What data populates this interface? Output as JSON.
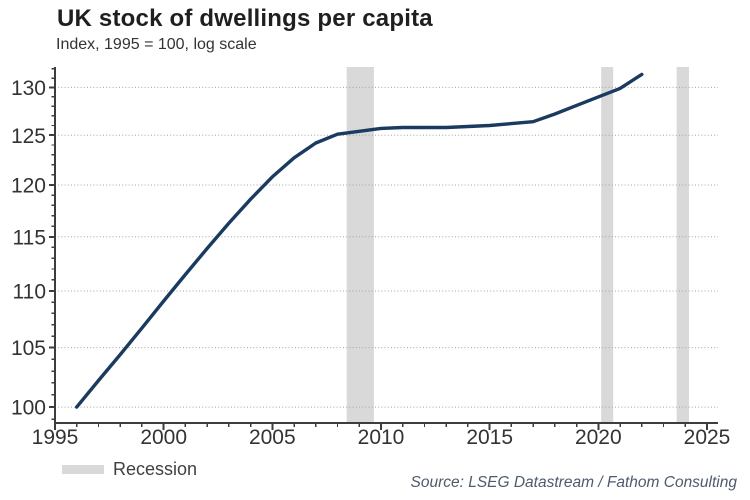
{
  "header": {
    "title": "UK stock of dwellings per capita",
    "subtitle": "Index, 1995 = 100, log scale"
  },
  "legend": {
    "label": "Recession"
  },
  "footer": {
    "source": "Source: LSEG Datastream / Fathom Consulting"
  },
  "colors": {
    "line": "#1a3a60",
    "recession_band": "#d9d9d9",
    "gridline": "#a3a3a3",
    "axis": "#3d3d3d",
    "tick_label": "#333333",
    "title": "#1f1f1f",
    "subtitle": "#333333",
    "legend_text": "#404040",
    "source_text": "#4d5b6b"
  },
  "chart_data": {
    "type": "line",
    "title": "UK stock of dwellings per capita",
    "subtitle": "Index, 1995 = 100, log scale",
    "scale": "log",
    "grid": "horizontal-dotted",
    "legend_position": "bottom-left",
    "x": [
      1996,
      1997,
      1998,
      1999,
      2000,
      2001,
      2002,
      2003,
      2004,
      2005,
      2006,
      2007,
      2008,
      2009,
      2010,
      2011,
      2012,
      2013,
      2014,
      2015,
      2016,
      2017,
      2018,
      2019,
      2020,
      2021,
      2022
    ],
    "series": [
      {
        "name": "UK stock of dwellings per capita (index, 1995 = 100)",
        "values": [
          100.0,
          102.2,
          104.4,
          106.7,
          109.1,
          111.5,
          113.9,
          116.3,
          118.6,
          120.8,
          122.7,
          124.2,
          125.1,
          125.4,
          125.7,
          125.8,
          125.8,
          125.8,
          125.9,
          126.0,
          126.2,
          126.4,
          127.2,
          128.1,
          129.0,
          129.9,
          131.4
        ]
      }
    ],
    "recession_bands": [
      [
        2008.42,
        2009.67
      ],
      [
        2020.13,
        2020.68
      ],
      [
        2023.6,
        2024.17
      ]
    ],
    "x_ticks_major": [
      1995,
      2000,
      2005,
      2010,
      2015,
      2020,
      2025
    ],
    "x_ticks_minor_step": 1,
    "y_ticks_major": [
      100,
      105,
      110,
      115,
      120,
      125,
      130
    ],
    "y_ticks_minor_step": 1,
    "xlim": [
      1995,
      2025
    ],
    "ylim": [
      98.7,
      132.2
    ]
  }
}
